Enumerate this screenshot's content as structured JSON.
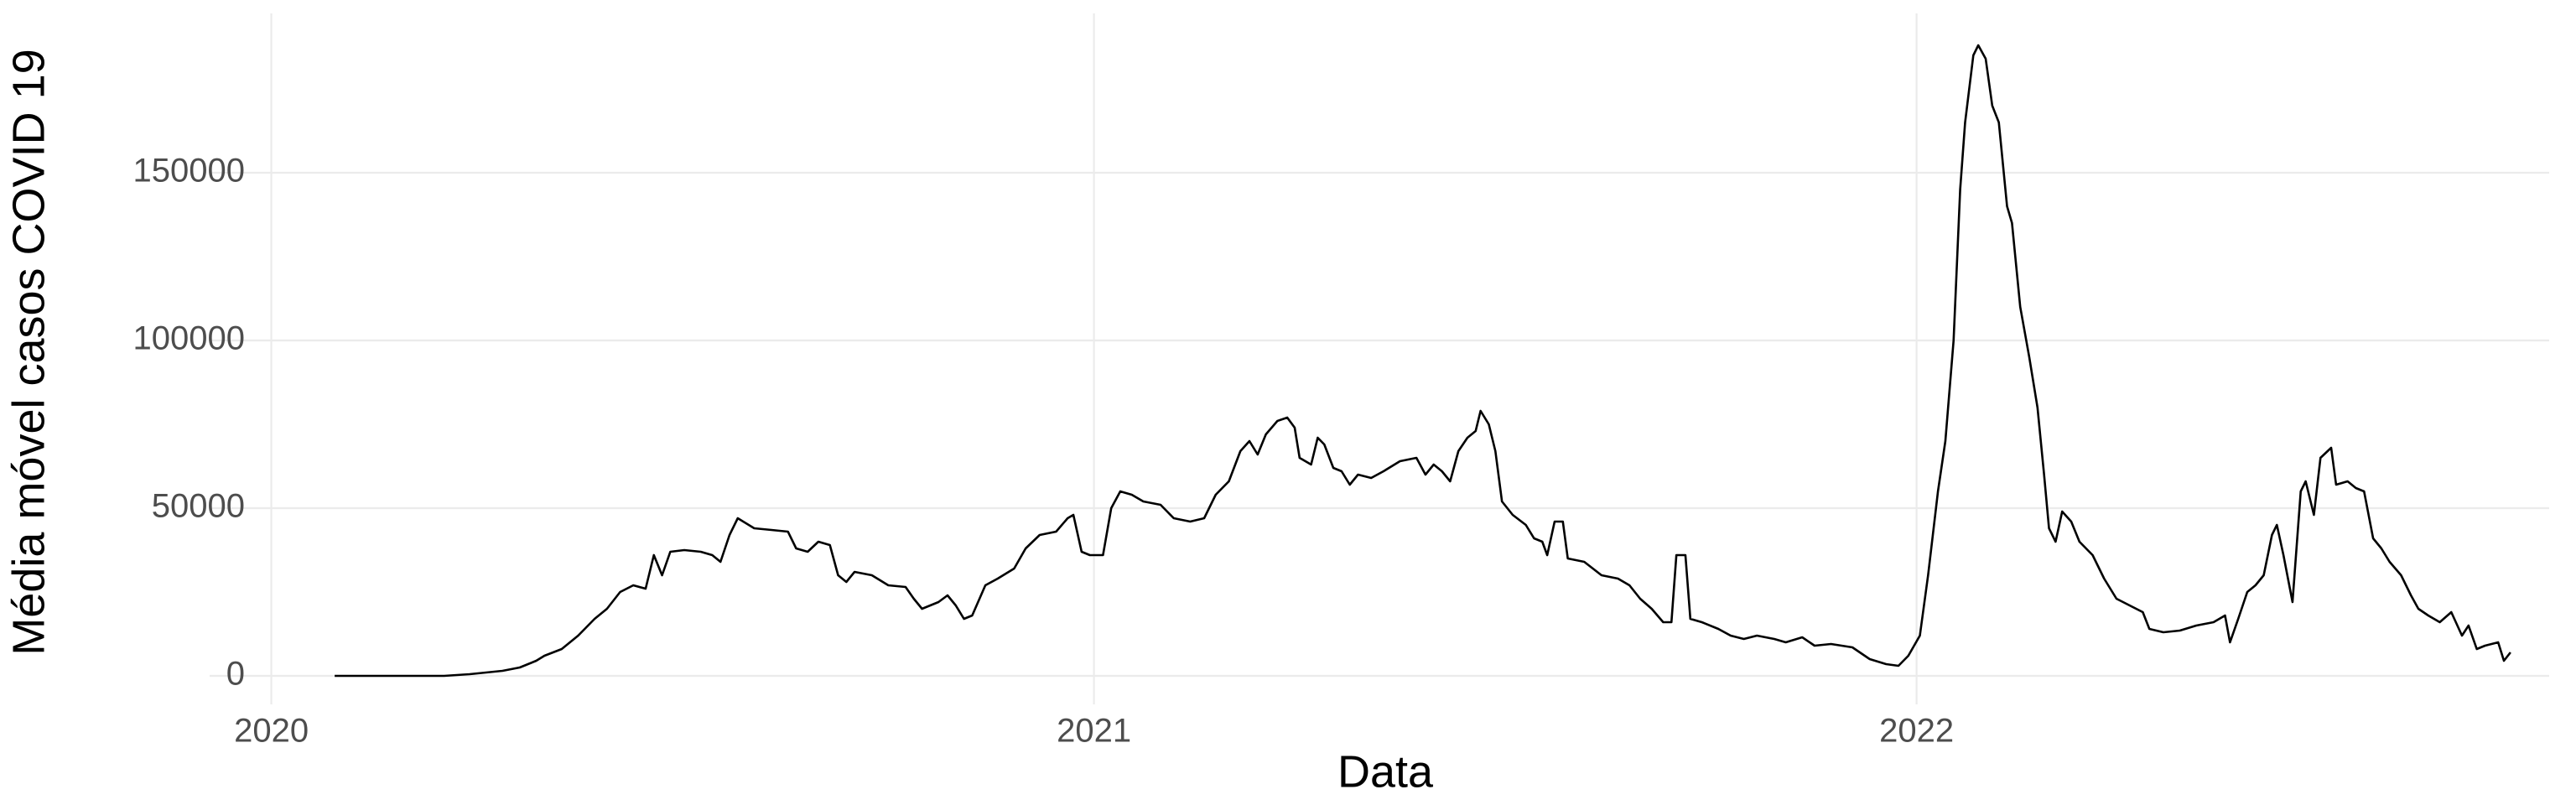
{
  "chart_data": {
    "type": "line",
    "xlabel": "Data",
    "ylabel": "Média móvel casos COVID 19",
    "color": "#000000",
    "grid": true,
    "xlim": [
      2019.925,
      2022.769
    ],
    "xticks": [
      2020,
      2021,
      2022
    ],
    "ylim": [
      -8500,
      197500
    ],
    "yticks": [
      0,
      50000,
      100000,
      150000
    ],
    "x": [
      2020.077,
      2020.21,
      2020.241,
      2020.261,
      2020.281,
      2020.302,
      2020.322,
      2020.332,
      2020.353,
      2020.373,
      2020.393,
      2020.408,
      2020.424,
      2020.44,
      2020.455,
      2020.465,
      2020.475,
      2020.485,
      2020.502,
      2020.522,
      2020.536,
      2020.546,
      2020.557,
      2020.567,
      2020.587,
      2020.608,
      2020.628,
      2020.638,
      2020.652,
      2020.665,
      2020.679,
      2020.689,
      2020.699,
      2020.709,
      2020.73,
      2020.75,
      2020.771,
      2020.781,
      2020.791,
      2020.811,
      2020.822,
      2020.832,
      2020.842,
      2020.852,
      2020.868,
      2020.883,
      2020.903,
      2020.917,
      2020.934,
      2020.954,
      2020.968,
      2020.975,
      2020.985,
      2020.995,
      2021.011,
      2021.021,
      2021.032,
      2021.046,
      2021.06,
      2021.081,
      2021.097,
      2021.117,
      2021.134,
      2021.148,
      2021.164,
      2021.178,
      2021.189,
      2021.199,
      2021.209,
      2021.223,
      2021.235,
      2021.244,
      2021.25,
      2021.264,
      2021.272,
      2021.28,
      2021.291,
      2021.301,
      2021.311,
      2021.321,
      2021.337,
      2021.352,
      2021.372,
      2021.392,
      2021.403,
      2021.413,
      2021.423,
      2021.433,
      2021.443,
      2021.454,
      2021.464,
      2021.47,
      2021.48,
      2021.488,
      2021.496,
      2021.509,
      2021.525,
      2021.535,
      2021.545,
      2021.551,
      2021.56,
      2021.57,
      2021.576,
      2021.596,
      2021.617,
      2021.637,
      2021.651,
      2021.664,
      2021.678,
      2021.692,
      2021.702,
      2021.708,
      2021.719,
      2021.725,
      2021.739,
      2021.759,
      2021.774,
      2021.79,
      2021.806,
      2021.827,
      2021.841,
      2021.861,
      2021.876,
      2021.896,
      2021.922,
      2021.943,
      2021.963,
      2021.978,
      2021.99,
      2022.004,
      2022.014,
      2022.026,
      2022.035,
      2022.045,
      2022.053,
      2022.059,
      2022.069,
      2022.075,
      2022.084,
      2022.092,
      2022.1,
      2022.11,
      2022.116,
      2022.126,
      2022.137,
      2022.147,
      2022.155,
      2022.161,
      2022.169,
      2022.177,
      2022.188,
      2022.198,
      2022.214,
      2022.228,
      2022.243,
      2022.259,
      2022.275,
      2022.283,
      2022.3,
      2022.32,
      2022.34,
      2022.361,
      2022.375,
      2022.381,
      2022.391,
      2022.402,
      2022.412,
      2022.422,
      2022.432,
      2022.438,
      2022.446,
      2022.457,
      2022.467,
      2022.473,
      2022.483,
      2022.491,
      2022.504,
      2022.51,
      2022.524,
      2022.534,
      2022.544,
      2022.555,
      2022.565,
      2022.575,
      2022.589,
      2022.601,
      2022.61,
      2022.622,
      2022.636,
      2022.65,
      2022.663,
      2022.671,
      2022.681,
      2022.691,
      2022.707,
      2022.714,
      2022.722
    ],
    "values": [
      0,
      0,
      500,
      1000,
      1500,
      2500,
      4500,
      6000,
      8000,
      12000,
      17000,
      20000,
      25000,
      27000,
      26000,
      36000,
      30000,
      37000,
      37500,
      37000,
      36000,
      34000,
      42000,
      47000,
      44000,
      43500,
      43000,
      38000,
      37000,
      40000,
      39000,
      30000,
      28000,
      31000,
      30000,
      27000,
      26500,
      23000,
      20000,
      22000,
      24000,
      21000,
      17000,
      18000,
      27000,
      29000,
      32000,
      38000,
      42000,
      43000,
      47000,
      48000,
      37000,
      36000,
      36000,
      50000,
      55000,
      54000,
      52000,
      51000,
      47000,
      46000,
      47000,
      54000,
      58000,
      67000,
      70000,
      66000,
      72000,
      76000,
      77000,
      74000,
      65000,
      63000,
      71000,
      69000,
      62000,
      61000,
      57000,
      60000,
      59000,
      61000,
      64000,
      65000,
      60000,
      63000,
      61000,
      58000,
      67000,
      71000,
      73000,
      79000,
      75000,
      67000,
      52000,
      48000,
      45000,
      41000,
      40000,
      36000,
      46000,
      46000,
      35000,
      34000,
      30000,
      29000,
      27000,
      23000,
      20000,
      16000,
      16000,
      36000,
      36000,
      17000,
      16000,
      14000,
      12000,
      11000,
      12000,
      11000,
      10000,
      11500,
      9000,
      9500,
      8500,
      5000,
      3500,
      3000,
      6000,
      12000,
      30000,
      55000,
      70000,
      100000,
      145000,
      165000,
      185000,
      188000,
      184000,
      170000,
      165000,
      140000,
      135000,
      110000,
      95000,
      80000,
      60000,
      44000,
      40000,
      49000,
      46000,
      40000,
      36000,
      29000,
      23000,
      21000,
      19000,
      14000,
      13000,
      13500,
      15000,
      16000,
      18000,
      10000,
      17000,
      25000,
      27000,
      30000,
      42000,
      45000,
      36000,
      22000,
      55000,
      58000,
      48000,
      65000,
      68000,
      57000,
      58000,
      56000,
      55000,
      41000,
      38000,
      34000,
      30000,
      24000,
      20000,
      18000,
      16000,
      19000,
      12000,
      15000,
      8000,
      9000,
      10000,
      4500,
      7000
    ]
  }
}
